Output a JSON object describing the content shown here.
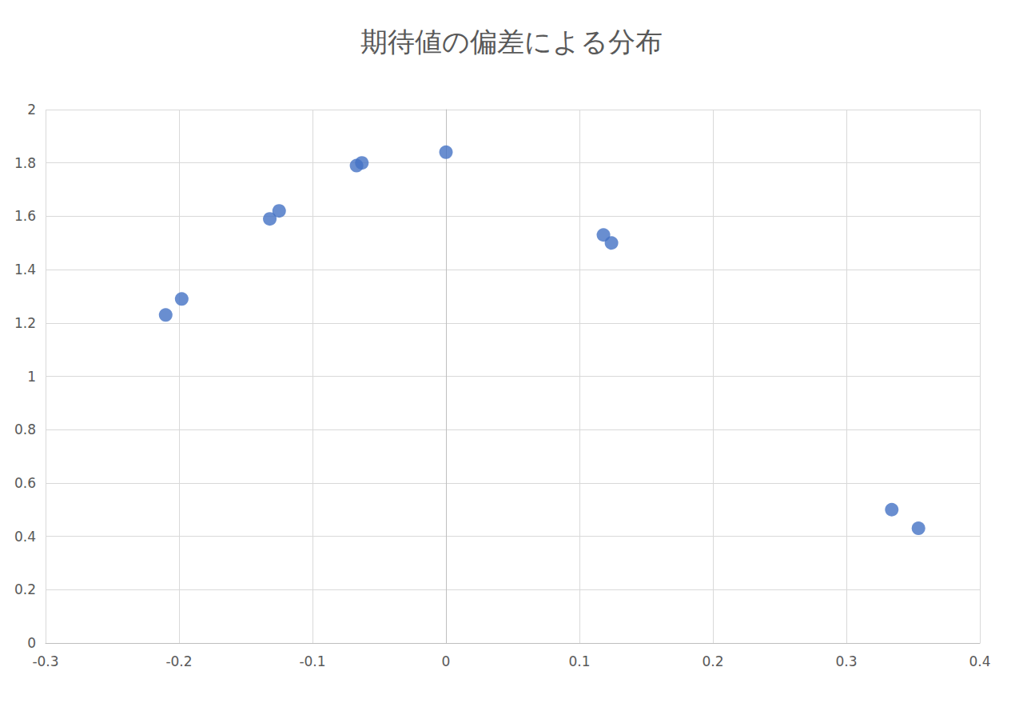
{
  "chart_data": {
    "type": "scatter",
    "title": "期待値の偏差による分布",
    "x": [
      -0.21,
      -0.198,
      -0.132,
      -0.125,
      -0.067,
      -0.063,
      0,
      0.118,
      0.124,
      0.334,
      0.354
    ],
    "values": [
      1.23,
      1.29,
      1.59,
      1.62,
      1.79,
      1.8,
      1.84,
      1.53,
      1.5,
      0.5,
      0.43
    ],
    "color": "#4472c4",
    "marker": "circle",
    "xlim": [
      -0.3,
      0.4
    ],
    "xticks": [
      -0.3,
      -0.2,
      -0.1,
      0,
      0.1,
      0.2,
      0.3,
      0.4
    ],
    "ylim": [
      0,
      2
    ],
    "yticks": [
      0,
      0.2,
      0.4,
      0.6,
      0.8,
      1,
      1.2,
      1.4,
      1.6,
      1.8,
      2
    ],
    "grid": true
  }
}
